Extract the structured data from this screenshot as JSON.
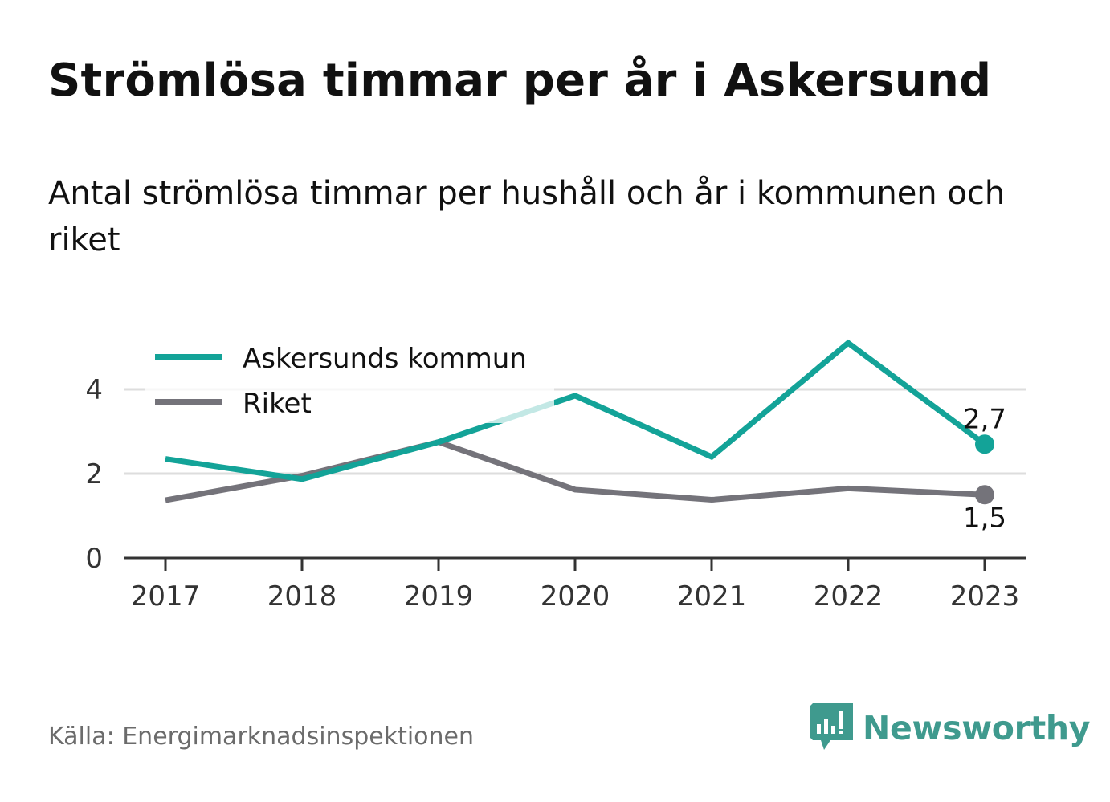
{
  "title": "Strömlösa timmar per år i Askersund",
  "subtitle": "Antal strömlösa timmar per hushåll och år i kommunen och riket",
  "source": "Källa: Energimarknadsinspektionen",
  "brand": "Newsworthy",
  "colors": {
    "askersund": "#13a398",
    "riket": "#74737a",
    "grid": "#dddddd",
    "axis": "#333333",
    "brand": "#3f9a8e"
  },
  "chart_data": {
    "type": "line",
    "categories": [
      "2017",
      "2018",
      "2019",
      "2020",
      "2021",
      "2022",
      "2023"
    ],
    "ylim": [
      0,
      5.4
    ],
    "yticks": [
      {
        "value": 0,
        "label": "0"
      },
      {
        "value": 2,
        "label": "2"
      },
      {
        "value": 4,
        "label": "4"
      }
    ],
    "grid": true,
    "legend_position": "top-left",
    "series": [
      {
        "name": "Askersunds kommun",
        "values": [
          2.35,
          1.87,
          2.75,
          3.85,
          2.4,
          5.1,
          2.7
        ],
        "end_label": "2,7"
      },
      {
        "name": "Riket",
        "values": [
          1.37,
          1.95,
          2.75,
          1.62,
          1.38,
          1.65,
          1.5
        ],
        "end_label": "1,5"
      }
    ]
  }
}
